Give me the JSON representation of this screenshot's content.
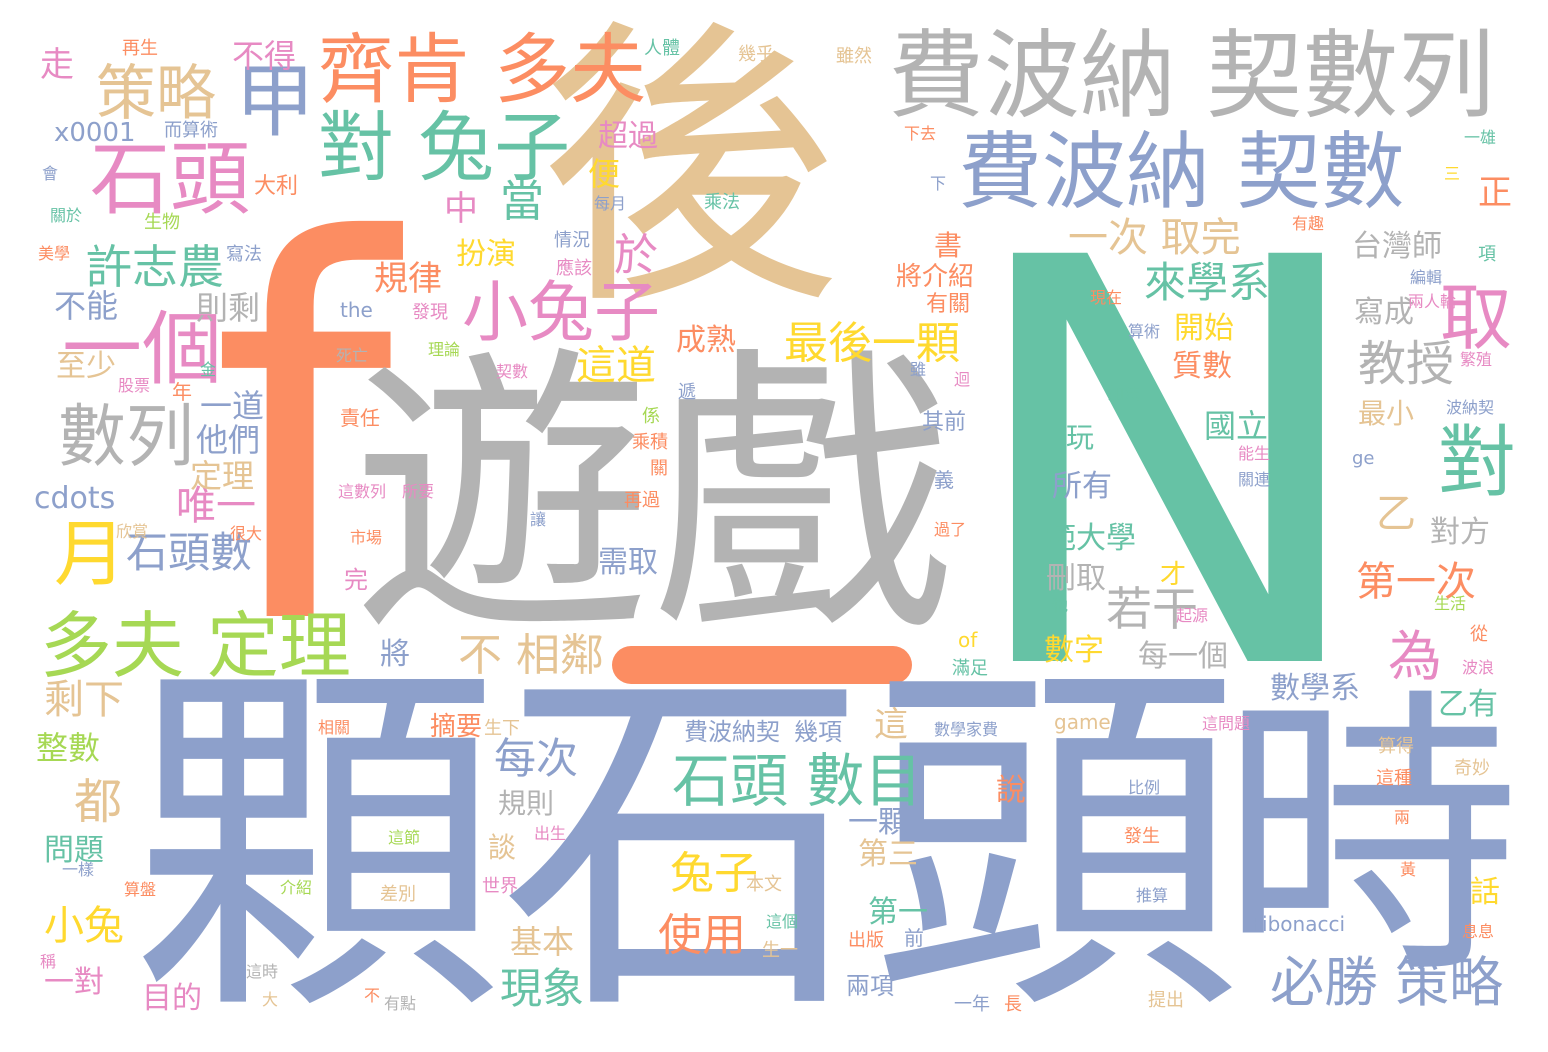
{
  "palette": {
    "blue": "#8da0cb",
    "orange": "#fc8d62",
    "green": "#66c2a5",
    "tan": "#e5c494",
    "gray": "#b3b3b3",
    "pink": "#e78ac3",
    "lime": "#a6d854",
    "yellow": "#ffd92f"
  },
  "words": [
    {
      "text": "N",
      "color": "green"
    },
    {
      "text": "f",
      "color": "orange"
    },
    {
      "text": "後",
      "color": "tan"
    },
    {
      "text": "遊戲",
      "color": "gray"
    },
    {
      "text": "顆",
      "color": "blue"
    },
    {
      "text": "石頭",
      "color": "blue"
    },
    {
      "text": "時",
      "color": "blue"
    },
    {
      "text": "費波納 契數列",
      "color": "gray"
    },
    {
      "text": "費波納 契數",
      "color": "blue"
    },
    {
      "text": "齊肯 多夫",
      "color": "orange"
    },
    {
      "text": "石頭",
      "color": "pink"
    },
    {
      "text": "甲",
      "color": "blue"
    },
    {
      "text": "對 兔子",
      "color": "green"
    },
    {
      "text": "策略",
      "color": "tan"
    },
    {
      "text": "一個",
      "color": "pink"
    },
    {
      "text": "小兔子",
      "color": "pink"
    },
    {
      "text": "數列",
      "color": "gray"
    },
    {
      "text": "月",
      "color": "yellow"
    },
    {
      "text": "多夫 定理",
      "color": "lime"
    },
    {
      "text": "許志農",
      "color": "green"
    },
    {
      "text": "對",
      "color": "green"
    },
    {
      "text": "取",
      "color": "pink"
    },
    {
      "text": "石頭 數目",
      "color": "green"
    },
    {
      "text": "必勝 策略",
      "color": "blue"
    },
    {
      "text": "最後一顆",
      "color": "yellow"
    },
    {
      "text": "石頭數",
      "color": "blue"
    },
    {
      "text": "教授",
      "color": "gray"
    },
    {
      "text": "來學系",
      "color": "green"
    },
    {
      "text": "一次 取完",
      "color": "tan"
    },
    {
      "text": "當",
      "color": "green"
    },
    {
      "text": "中",
      "color": "pink"
    },
    {
      "text": "於",
      "color": "pink"
    },
    {
      "text": "唯一",
      "color": "pink"
    },
    {
      "text": "都",
      "color": "tan"
    },
    {
      "text": "為",
      "color": "pink"
    },
    {
      "text": "不 相鄰",
      "color": "tan"
    },
    {
      "text": "若干",
      "color": "gray"
    },
    {
      "text": "兔子",
      "color": "yellow"
    },
    {
      "text": "使用",
      "color": "orange"
    },
    {
      "text": "每次",
      "color": "blue"
    },
    {
      "text": "現象",
      "color": "green"
    },
    {
      "text": "第一次",
      "color": "orange"
    },
    {
      "text": "這道",
      "color": "yellow"
    },
    {
      "text": "小兔",
      "color": "yellow"
    },
    {
      "text": "剩下",
      "color": "tan"
    },
    {
      "text": "規律",
      "color": "orange"
    },
    {
      "text": "扮演",
      "color": "yellow"
    },
    {
      "text": "成熟",
      "color": "orange"
    },
    {
      "text": "超過",
      "color": "pink"
    },
    {
      "text": "便",
      "color": "yellow"
    },
    {
      "text": "走",
      "color": "pink"
    },
    {
      "text": "不得",
      "color": "pink"
    },
    {
      "text": "不能",
      "color": "blue"
    },
    {
      "text": "則剩",
      "color": "gray"
    },
    {
      "text": "x0001",
      "color": "blue"
    },
    {
      "text": "cdots",
      "color": "blue"
    },
    {
      "text": "他們",
      "color": "blue"
    },
    {
      "text": "一道",
      "color": "blue"
    },
    {
      "text": "定理",
      "color": "tan"
    },
    {
      "text": "至少",
      "color": "tan"
    },
    {
      "text": "整數",
      "color": "lime"
    },
    {
      "text": "問題",
      "color": "green"
    },
    {
      "text": "一對",
      "color": "pink"
    },
    {
      "text": "目的",
      "color": "pink"
    },
    {
      "text": "基本",
      "color": "tan"
    },
    {
      "text": "規則",
      "color": "gray"
    },
    {
      "text": "談",
      "color": "tan"
    },
    {
      "text": "需取",
      "color": "blue"
    },
    {
      "text": "將",
      "color": "blue"
    },
    {
      "text": "刪取",
      "color": "gray"
    },
    {
      "text": "範大學",
      "color": "green"
    },
    {
      "text": "所有",
      "color": "blue"
    },
    {
      "text": "玩",
      "color": "green"
    },
    {
      "text": "國立",
      "color": "green"
    },
    {
      "text": "質數",
      "color": "orange"
    },
    {
      "text": "開始",
      "color": "yellow"
    },
    {
      "text": "寫成",
      "color": "gray"
    },
    {
      "text": "台灣師",
      "color": "gray"
    },
    {
      "text": "最小",
      "color": "tan"
    },
    {
      "text": "對方",
      "color": "gray"
    },
    {
      "text": "乙",
      "color": "tan"
    },
    {
      "text": "數字",
      "color": "yellow"
    },
    {
      "text": "每一個",
      "color": "gray"
    },
    {
      "text": "數學系",
      "color": "blue"
    },
    {
      "text": "乙有",
      "color": "green"
    },
    {
      "text": "第三",
      "color": "tan"
    },
    {
      "text": "第一",
      "color": "green"
    },
    {
      "text": "一顆",
      "color": "blue"
    },
    {
      "text": "這",
      "color": "tan"
    },
    {
      "text": "說",
      "color": "orange"
    },
    {
      "text": "費波納契",
      "color": "blue"
    },
    {
      "text": "幾項",
      "color": "blue"
    },
    {
      "text": "摘要",
      "color": "orange"
    },
    {
      "text": "書",
      "color": "orange"
    },
    {
      "text": "將介紹",
      "color": "orange"
    },
    {
      "text": "有關",
      "color": "orange"
    },
    {
      "text": "正",
      "color": "orange"
    },
    {
      "text": "兩項",
      "color": "blue"
    },
    {
      "text": "話",
      "color": "yellow"
    },
    {
      "text": "再生",
      "color": "orange"
    },
    {
      "text": "人體",
      "color": "green"
    },
    {
      "text": "幾乎",
      "color": "tan"
    },
    {
      "text": "雖然",
      "color": "tan"
    },
    {
      "text": "而算術",
      "color": "blue"
    },
    {
      "text": "大利",
      "color": "orange"
    },
    {
      "text": "生物",
      "color": "lime"
    },
    {
      "text": "寫法",
      "color": "blue"
    },
    {
      "text": "乘法",
      "color": "green"
    },
    {
      "text": "每月",
      "color": "blue"
    },
    {
      "text": "情況",
      "color": "blue"
    },
    {
      "text": "應該",
      "color": "pink"
    },
    {
      "text": "發現",
      "color": "pink"
    },
    {
      "text": "the",
      "color": "blue"
    },
    {
      "text": "會",
      "color": "blue"
    },
    {
      "text": "關於",
      "color": "green"
    },
    {
      "text": "美學",
      "color": "orange"
    },
    {
      "text": "死亡",
      "color": "gray"
    },
    {
      "text": "股票",
      "color": "pink"
    },
    {
      "text": "年",
      "color": "orange"
    },
    {
      "text": "金",
      "color": "green"
    },
    {
      "text": "理論",
      "color": "lime"
    },
    {
      "text": "契數",
      "color": "pink"
    },
    {
      "text": "遞",
      "color": "blue"
    },
    {
      "text": "係",
      "color": "lime"
    },
    {
      "text": "責任",
      "color": "orange"
    },
    {
      "text": "乘積",
      "color": "orange"
    },
    {
      "text": "關",
      "color": "orange"
    },
    {
      "text": "其前",
      "color": "blue"
    },
    {
      "text": "義",
      "color": "blue"
    },
    {
      "text": "這數列",
      "color": "pink"
    },
    {
      "text": "所要",
      "color": "pink"
    },
    {
      "text": "再過",
      "color": "orange"
    },
    {
      "text": "讓",
      "color": "blue"
    },
    {
      "text": "市場",
      "color": "orange"
    },
    {
      "text": "很大",
      "color": "orange"
    },
    {
      "text": "欣賞",
      "color": "tan"
    },
    {
      "text": "完",
      "color": "pink"
    },
    {
      "text": "才",
      "color": "yellow"
    },
    {
      "text": "of",
      "color": "yellow"
    },
    {
      "text": "滿足",
      "color": "green"
    },
    {
      "text": "game",
      "color": "tan"
    },
    {
      "text": "數學家費",
      "color": "blue"
    },
    {
      "text": "這問題",
      "color": "pink"
    },
    {
      "text": "算得",
      "color": "tan"
    },
    {
      "text": "生下",
      "color": "tan"
    },
    {
      "text": "相關",
      "color": "orange"
    },
    {
      "text": "比例",
      "color": "blue"
    },
    {
      "text": "這種",
      "color": "orange"
    },
    {
      "text": "兩",
      "color": "orange"
    },
    {
      "text": "奇妙",
      "color": "tan"
    },
    {
      "text": "這節",
      "color": "lime"
    },
    {
      "text": "出生",
      "color": "pink"
    },
    {
      "text": "發生",
      "color": "orange"
    },
    {
      "text": "推算",
      "color": "blue"
    },
    {
      "text": "黃",
      "color": "orange"
    },
    {
      "text": "Fibonacci",
      "color": "blue"
    },
    {
      "text": "息息",
      "color": "orange"
    },
    {
      "text": "一樣",
      "color": "blue"
    },
    {
      "text": "算盤",
      "color": "orange"
    },
    {
      "text": "介紹",
      "color": "lime"
    },
    {
      "text": "世界",
      "color": "pink"
    },
    {
      "text": "差別",
      "color": "tan"
    },
    {
      "text": "本文",
      "color": "tan"
    },
    {
      "text": "這個",
      "color": "green"
    },
    {
      "text": "生一",
      "color": "tan"
    },
    {
      "text": "出版",
      "color": "orange"
    },
    {
      "text": "前",
      "color": "blue"
    },
    {
      "text": "稱",
      "color": "pink"
    },
    {
      "text": "這時",
      "color": "gray"
    },
    {
      "text": "大",
      "color": "tan"
    },
    {
      "text": "不",
      "color": "orange"
    },
    {
      "text": "有點",
      "color": "gray"
    },
    {
      "text": "一年",
      "color": "blue"
    },
    {
      "text": "長",
      "color": "orange"
    },
    {
      "text": "提出",
      "color": "tan"
    },
    {
      "text": "下去",
      "color": "orange"
    },
    {
      "text": "下",
      "color": "blue"
    },
    {
      "text": "三",
      "color": "yellow"
    },
    {
      "text": "一雄",
      "color": "green"
    },
    {
      "text": "有趣",
      "color": "orange"
    },
    {
      "text": "項",
      "color": "green"
    },
    {
      "text": "現在",
      "color": "orange"
    },
    {
      "text": "編輯",
      "color": "blue"
    },
    {
      "text": "兩人輪",
      "color": "pink"
    },
    {
      "text": "算術",
      "color": "blue"
    },
    {
      "text": "雖",
      "color": "blue"
    },
    {
      "text": "迴",
      "color": "pink"
    },
    {
      "text": "加法",
      "color": "green"
    },
    {
      "text": "繁殖",
      "color": "pink"
    },
    {
      "text": "波納契",
      "color": "blue"
    },
    {
      "text": "能生",
      "color": "pink"
    },
    {
      "text": "ge",
      "color": "blue"
    },
    {
      "text": "關連",
      "color": "blue"
    },
    {
      "text": "過了",
      "color": "orange"
    },
    {
      "text": "牠",
      "color": "green"
    },
    {
      "text": "起源",
      "color": "pink"
    },
    {
      "text": "生活",
      "color": "lime"
    },
    {
      "text": "從",
      "color": "orange"
    },
    {
      "text": "波浪",
      "color": "pink"
    }
  ]
}
